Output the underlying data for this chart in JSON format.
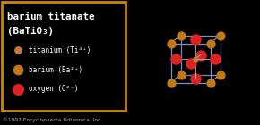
{
  "bg_color": "#000000",
  "border_color": "#cc8800",
  "title_line1": "barium titanate",
  "title_line2": "(BaTiO₃)",
  "legend_labels": [
    "titanium (Ti⁴⁺)",
    "barium (Ba²⁺)",
    "oxygen (O²⁻)"
  ],
  "titanium_color": "#c47840",
  "barium_color": "#c07818",
  "oxygen_color": "#dd2222",
  "oxygen_bond_color": "#88cccc",
  "cube_color": "#8888cc",
  "copyright_text": "©1997 Encyclopaedia Britannica, Inc.",
  "figsize": [
    2.9,
    1.4
  ],
  "dpi": 100
}
